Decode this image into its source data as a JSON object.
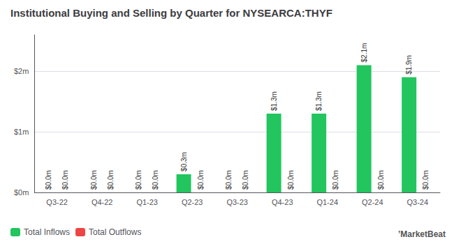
{
  "chart_data": {
    "type": "bar",
    "title": "Institutional Buying and Selling by Quarter for NYSEARCA:THYF",
    "categories": [
      "Q3-22",
      "Q4-22",
      "Q1-23",
      "Q2-23",
      "Q3-23",
      "Q4-23",
      "Q1-24",
      "Q2-24",
      "Q3-24"
    ],
    "series": [
      {
        "name": "Total Inflows",
        "color": "#22c55e",
        "values": [
          0.0,
          0.0,
          0.0,
          0.3,
          0.0,
          1.3,
          1.3,
          2.1,
          1.9
        ],
        "value_labels": [
          "$0.0m",
          "$0.0m",
          "$0.0m",
          "$0.3m",
          "$0.0m",
          "$1.3m",
          "$1.3m",
          "$2.1m",
          "$1.9m"
        ]
      },
      {
        "name": "Total Outflows",
        "color": "#ef4444",
        "values": [
          0.0,
          0.0,
          0.0,
          0.0,
          0.0,
          0.0,
          0.0,
          0.0,
          0.0
        ],
        "value_labels": [
          "$0.0m",
          "$0.0m",
          "$0.0m",
          "$0.0m",
          "$0.0m",
          "$0.0m",
          "$0.0m",
          "$0.0m",
          "$0.0m"
        ]
      }
    ],
    "ylim": [
      0.0,
      2.6
    ],
    "yticks": [
      {
        "value": 0.0,
        "label": "$0m"
      },
      {
        "value": 1.0,
        "label": "$1m"
      },
      {
        "value": 2.0,
        "label": "$2m"
      }
    ],
    "grid": true,
    "legend": "lower left",
    "data_labels": true,
    "annotations": [
      "’MarketBeat"
    ]
  }
}
